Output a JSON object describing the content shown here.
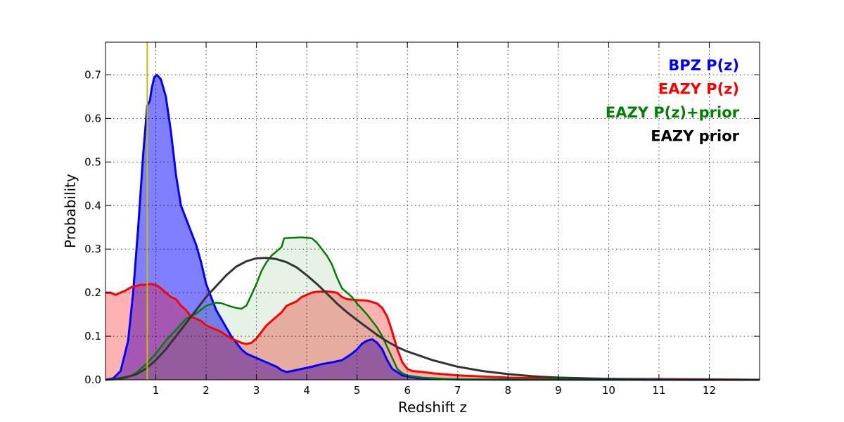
{
  "chart_data": {
    "type": "area",
    "title": "",
    "xlabel": "Redshift z",
    "ylabel": "Probability",
    "xlim": [
      0,
      13
    ],
    "ylim": [
      0,
      0.775
    ],
    "xticks": [
      1,
      2,
      3,
      4,
      5,
      6,
      7,
      8,
      9,
      10,
      11,
      12
    ],
    "xtick_labels": [
      "1",
      "2",
      "3",
      "4",
      "5",
      "6",
      "7",
      "8",
      "9",
      "10",
      "11",
      "12"
    ],
    "yticks": [
      0.0,
      0.1,
      0.2,
      0.3,
      0.4,
      0.5,
      0.6,
      0.7
    ],
    "ytick_labels": [
      "0.0",
      "0.1",
      "0.2",
      "0.3",
      "0.4",
      "0.5",
      "0.6",
      "0.7"
    ],
    "grid": true,
    "legend_position": "top-right",
    "reference_line": {
      "x": 0.83,
      "color": "#bfbf00"
    },
    "series": [
      {
        "name": "BPZ P(z)",
        "color": "#0000ff",
        "fill_color": "#0000ff",
        "fill_opacity": 0.5,
        "line_width": 3,
        "points": [
          [
            0,
            0
          ],
          [
            0.15,
            0.003
          ],
          [
            0.3,
            0.02
          ],
          [
            0.45,
            0.09
          ],
          [
            0.55,
            0.2
          ],
          [
            0.65,
            0.35
          ],
          [
            0.75,
            0.52
          ],
          [
            0.83,
            0.63
          ],
          [
            0.88,
            0.64
          ],
          [
            0.92,
            0.67
          ],
          [
            0.97,
            0.695
          ],
          [
            1.02,
            0.7
          ],
          [
            1.1,
            0.69
          ],
          [
            1.2,
            0.65
          ],
          [
            1.3,
            0.57
          ],
          [
            1.4,
            0.47
          ],
          [
            1.5,
            0.4
          ],
          [
            1.6,
            0.37
          ],
          [
            1.7,
            0.34
          ],
          [
            1.8,
            0.31
          ],
          [
            1.9,
            0.27
          ],
          [
            2.0,
            0.22
          ],
          [
            2.1,
            0.19
          ],
          [
            2.2,
            0.16
          ],
          [
            2.3,
            0.14
          ],
          [
            2.4,
            0.12
          ],
          [
            2.5,
            0.1
          ],
          [
            2.6,
            0.085
          ],
          [
            2.7,
            0.07
          ],
          [
            2.8,
            0.06
          ],
          [
            3.0,
            0.05
          ],
          [
            3.2,
            0.04
          ],
          [
            3.4,
            0.03
          ],
          [
            3.5,
            0.022
          ],
          [
            3.6,
            0.018
          ],
          [
            3.7,
            0.02
          ],
          [
            3.9,
            0.025
          ],
          [
            4.1,
            0.03
          ],
          [
            4.3,
            0.036
          ],
          [
            4.5,
            0.04
          ],
          [
            4.7,
            0.045
          ],
          [
            4.9,
            0.06
          ],
          [
            5.0,
            0.07
          ],
          [
            5.1,
            0.083
          ],
          [
            5.2,
            0.09
          ],
          [
            5.3,
            0.093
          ],
          [
            5.4,
            0.085
          ],
          [
            5.5,
            0.07
          ],
          [
            5.6,
            0.045
          ],
          [
            5.7,
            0.025
          ],
          [
            5.9,
            0.01
          ],
          [
            6.2,
            0.004
          ],
          [
            6.6,
            0.002
          ],
          [
            7,
            0.001
          ],
          [
            8,
            0.0005
          ],
          [
            10,
            0.0002
          ],
          [
            13,
            0
          ]
        ]
      },
      {
        "name": "EAZY P(z)",
        "color": "#ff0000",
        "fill_color": "#ff0000",
        "fill_opacity": 0.3,
        "line_width": 3,
        "points": [
          [
            0,
            0.2
          ],
          [
            0.1,
            0.2
          ],
          [
            0.2,
            0.195
          ],
          [
            0.3,
            0.2
          ],
          [
            0.4,
            0.205
          ],
          [
            0.5,
            0.212
          ],
          [
            0.6,
            0.215
          ],
          [
            0.7,
            0.218
          ],
          [
            0.8,
            0.218
          ],
          [
            0.9,
            0.22
          ],
          [
            1.0,
            0.218
          ],
          [
            1.1,
            0.21
          ],
          [
            1.2,
            0.2
          ],
          [
            1.3,
            0.19
          ],
          [
            1.4,
            0.185
          ],
          [
            1.5,
            0.17
          ],
          [
            1.6,
            0.16
          ],
          [
            1.7,
            0.145
          ],
          [
            1.8,
            0.14
          ],
          [
            1.9,
            0.135
          ],
          [
            2.0,
            0.125
          ],
          [
            2.1,
            0.12
          ],
          [
            2.2,
            0.115
          ],
          [
            2.3,
            0.11
          ],
          [
            2.4,
            0.102
          ],
          [
            2.5,
            0.095
          ],
          [
            2.6,
            0.09
          ],
          [
            2.7,
            0.085
          ],
          [
            2.8,
            0.082
          ],
          [
            2.9,
            0.085
          ],
          [
            3.0,
            0.095
          ],
          [
            3.1,
            0.11
          ],
          [
            3.2,
            0.125
          ],
          [
            3.3,
            0.135
          ],
          [
            3.4,
            0.145
          ],
          [
            3.5,
            0.155
          ],
          [
            3.6,
            0.17
          ],
          [
            3.7,
            0.175
          ],
          [
            3.8,
            0.18
          ],
          [
            3.9,
            0.19
          ],
          [
            4.0,
            0.195
          ],
          [
            4.1,
            0.2
          ],
          [
            4.2,
            0.202
          ],
          [
            4.4,
            0.203
          ],
          [
            4.6,
            0.2
          ],
          [
            4.7,
            0.19
          ],
          [
            4.8,
            0.185
          ],
          [
            5.0,
            0.183
          ],
          [
            5.2,
            0.182
          ],
          [
            5.4,
            0.175
          ],
          [
            5.5,
            0.165
          ],
          [
            5.6,
            0.145
          ],
          [
            5.7,
            0.11
          ],
          [
            5.8,
            0.07
          ],
          [
            5.9,
            0.04
          ],
          [
            6.0,
            0.025
          ],
          [
            6.1,
            0.02
          ],
          [
            6.3,
            0.018
          ],
          [
            6.5,
            0.015
          ],
          [
            7,
            0.01
          ],
          [
            8,
            0.005
          ],
          [
            9,
            0.003
          ],
          [
            10,
            0.002
          ],
          [
            12,
            0.001
          ],
          [
            13,
            0
          ]
        ]
      },
      {
        "name": "EAZY P(z)+prior",
        "color": "#008000",
        "fill_color": "#008000",
        "fill_opacity": 0.1,
        "line_width": 2.5,
        "points": [
          [
            0,
            0
          ],
          [
            0.2,
            0.001
          ],
          [
            0.4,
            0.004
          ],
          [
            0.6,
            0.015
          ],
          [
            0.8,
            0.035
          ],
          [
            1.0,
            0.06
          ],
          [
            1.2,
            0.09
          ],
          [
            1.4,
            0.115
          ],
          [
            1.6,
            0.14
          ],
          [
            1.8,
            0.152
          ],
          [
            2.0,
            0.17
          ],
          [
            2.2,
            0.177
          ],
          [
            2.3,
            0.176
          ],
          [
            2.4,
            0.172
          ],
          [
            2.5,
            0.168
          ],
          [
            2.6,
            0.165
          ],
          [
            2.7,
            0.163
          ],
          [
            2.8,
            0.17
          ],
          [
            2.9,
            0.195
          ],
          [
            3.0,
            0.22
          ],
          [
            3.1,
            0.25
          ],
          [
            3.2,
            0.27
          ],
          [
            3.3,
            0.285
          ],
          [
            3.4,
            0.295
          ],
          [
            3.5,
            0.305
          ],
          [
            3.55,
            0.325
          ],
          [
            3.7,
            0.326
          ],
          [
            3.9,
            0.327
          ],
          [
            4.1,
            0.325
          ],
          [
            4.2,
            0.315
          ],
          [
            4.3,
            0.3
          ],
          [
            4.4,
            0.285
          ],
          [
            4.5,
            0.265
          ],
          [
            4.6,
            0.235
          ],
          [
            4.7,
            0.21
          ],
          [
            4.8,
            0.2
          ],
          [
            4.9,
            0.19
          ],
          [
            5.0,
            0.175
          ],
          [
            5.2,
            0.15
          ],
          [
            5.4,
            0.12
          ],
          [
            5.5,
            0.1
          ],
          [
            5.6,
            0.075
          ],
          [
            5.7,
            0.05
          ],
          [
            5.8,
            0.025
          ],
          [
            5.9,
            0.015
          ],
          [
            6.0,
            0.01
          ],
          [
            6.3,
            0.005
          ],
          [
            6.8,
            0.002
          ],
          [
            7.5,
            0.001
          ],
          [
            9,
            0.0005
          ],
          [
            13,
            0
          ]
        ]
      },
      {
        "name": "EAZY prior",
        "color": "#333333",
        "fill_color": "none",
        "fill_opacity": 0,
        "line_width": 3,
        "points": [
          [
            0,
            0
          ],
          [
            0.2,
            0.002
          ],
          [
            0.4,
            0.006
          ],
          [
            0.6,
            0.012
          ],
          [
            0.8,
            0.025
          ],
          [
            1.0,
            0.045
          ],
          [
            1.2,
            0.07
          ],
          [
            1.4,
            0.1
          ],
          [
            1.6,
            0.13
          ],
          [
            1.8,
            0.16
          ],
          [
            2.0,
            0.19
          ],
          [
            2.2,
            0.215
          ],
          [
            2.4,
            0.24
          ],
          [
            2.6,
            0.26
          ],
          [
            2.8,
            0.272
          ],
          [
            3.0,
            0.279
          ],
          [
            3.2,
            0.28
          ],
          [
            3.4,
            0.277
          ],
          [
            3.6,
            0.27
          ],
          [
            3.8,
            0.258
          ],
          [
            4.0,
            0.24
          ],
          [
            4.2,
            0.22
          ],
          [
            4.4,
            0.198
          ],
          [
            4.6,
            0.175
          ],
          [
            4.8,
            0.155
          ],
          [
            5.0,
            0.137
          ],
          [
            5.2,
            0.12
          ],
          [
            5.4,
            0.103
          ],
          [
            5.6,
            0.088
          ],
          [
            5.8,
            0.075
          ],
          [
            6.0,
            0.065
          ],
          [
            6.5,
            0.045
          ],
          [
            7.0,
            0.03
          ],
          [
            7.5,
            0.02
          ],
          [
            8.0,
            0.013
          ],
          [
            8.5,
            0.008
          ],
          [
            9.0,
            0.005
          ],
          [
            10.0,
            0.002
          ],
          [
            11.0,
            0.0008
          ],
          [
            12.0,
            0.0003
          ],
          [
            13,
            0
          ]
        ]
      }
    ]
  }
}
